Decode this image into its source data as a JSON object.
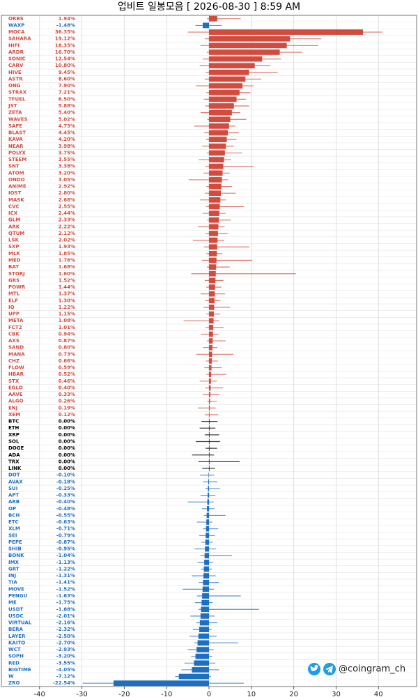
{
  "chart_data": {
    "type": "candle_bar",
    "title": "업비트 일봉모음 [ 2026-08-30 ]  8:59 AM",
    "watermark": "@coingram_ch",
    "color_up": "#d24b3f",
    "color_flat": "#000000",
    "color_down": "#1f6fbf",
    "xlim": [
      -49,
      49
    ],
    "xticks": [
      -40,
      -30,
      -20,
      -10,
      0,
      10,
      20,
      30,
      40
    ],
    "grid": true,
    "categories": [
      "ORBS",
      "WAXP",
      "MOCA",
      "SAHARA",
      "HIFI",
      "ARDR",
      "SONIC",
      "CARV",
      "HIVE",
      "ASTR",
      "ONG",
      "STRAX",
      "TFUEL",
      "JST",
      "ZETA",
      "WAVES",
      "SAFE",
      "BLAST",
      "KAVA",
      "NEAR",
      "POLYX",
      "STEEM",
      "SNT",
      "ATOM",
      "ONDO",
      "ANIME",
      "IOST",
      "MASK",
      "CVC",
      "ICX",
      "GLM",
      "ARK",
      "QTUM",
      "LSK",
      "SXP",
      "MLK",
      "MED",
      "BAT",
      "STORJ",
      "GRS",
      "POWR",
      "MTL",
      "ELF",
      "IQ",
      "UPP",
      "META",
      "FCT2",
      "CBK",
      "AXS",
      "SAND",
      "MANA",
      "CHZ",
      "FLOW",
      "HBAR",
      "STX",
      "EGLD",
      "AAVE",
      "ALGO",
      "ENJ",
      "XEM",
      "BTC",
      "ETH",
      "XRP",
      "SOL",
      "DOGE",
      "ADA",
      "TRX",
      "LINK",
      "DOT",
      "AVAX",
      "SUI",
      "APT",
      "ARB",
      "OP",
      "BCH",
      "ETC",
      "XLM",
      "SEI",
      "PEPE",
      "SHIB",
      "BONK",
      "IMX",
      "GRT",
      "INJ",
      "TIA",
      "MOVE",
      "PENGU",
      "ME",
      "USDT",
      "USDC",
      "VIRTUAL",
      "BERA",
      "LAYER",
      "KAITO",
      "WCT",
      "SOPH",
      "RED",
      "BIGTIME",
      "W",
      "ZRO"
    ],
    "values": [
      1.94,
      -1.48,
      36.35,
      19.12,
      18.35,
      16.7,
      12.54,
      10.8,
      9.45,
      8.6,
      7.9,
      7.21,
      6.5,
      5.88,
      5.4,
      5.02,
      4.73,
      4.45,
      4.2,
      3.98,
      3.75,
      3.55,
      3.38,
      3.2,
      3.05,
      2.92,
      2.8,
      2.68,
      2.55,
      2.44,
      2.33,
      2.22,
      2.12,
      2.02,
      1.93,
      1.85,
      1.76,
      1.68,
      1.6,
      1.52,
      1.44,
      1.37,
      1.3,
      1.22,
      1.15,
      1.08,
      1.01,
      0.94,
      0.87,
      0.8,
      0.73,
      0.66,
      0.59,
      0.52,
      0.46,
      0.4,
      0.33,
      0.26,
      0.19,
      0.12,
      0,
      0,
      0,
      0,
      0,
      0,
      0,
      0,
      -0.1,
      -0.18,
      -0.25,
      -0.33,
      -0.4,
      -0.48,
      -0.55,
      -0.63,
      -0.71,
      -0.79,
      -0.87,
      -0.95,
      -1.04,
      -1.13,
      -1.22,
      -1.31,
      -1.41,
      -1.52,
      -1.63,
      -1.75,
      -1.88,
      -2.01,
      -2.16,
      -2.32,
      -2.5,
      -2.7,
      -2.93,
      -3.2,
      -3.55,
      -4.05,
      -7.12,
      -22.54
    ],
    "value_labels": [
      "1.94%",
      "-1.48%",
      "36.35%",
      "19.12%",
      "18.35%",
      "16.70%",
      "12.54%",
      "10.80%",
      "9.45%",
      "8.60%",
      "7.90%",
      "7.21%",
      "6.50%",
      "5.88%",
      "5.40%",
      "5.02%",
      "4.73%",
      "4.45%",
      "4.20%",
      "3.98%",
      "3.75%",
      "3.55%",
      "3.38%",
      "3.20%",
      "3.05%",
      "2.92%",
      "2.80%",
      "2.68%",
      "2.55%",
      "2.44%",
      "2.33%",
      "2.22%",
      "2.12%",
      "2.02%",
      "1.93%",
      "1.85%",
      "1.76%",
      "1.68%",
      "1.60%",
      "1.52%",
      "1.44%",
      "1.37%",
      "1.30%",
      "1.22%",
      "1.15%",
      "1.08%",
      "1.01%",
      "0.94%",
      "0.87%",
      "0.80%",
      "0.73%",
      "0.66%",
      "0.59%",
      "0.52%",
      "0.46%",
      "0.40%",
      "0.33%",
      "0.26%",
      "0.19%",
      "0.12%",
      "0.00%",
      "0.00%",
      "0.00%",
      "0.00%",
      "0.00%",
      "0.00%",
      "0.00%",
      "0.00%",
      "-0.10%",
      "-0.18%",
      "-0.25%",
      "-0.33%",
      "-0.40%",
      "-0.48%",
      "-0.55%",
      "-0.63%",
      "-0.71%",
      "-0.79%",
      "-0.87%",
      "-0.95%",
      "-1.04%",
      "-1.13%",
      "-1.22%",
      "-1.31%",
      "-1.41%",
      "-1.52%",
      "-1.63%",
      "-1.75%",
      "-1.88%",
      "-2.01%",
      "-2.16%",
      "-2.32%",
      "-2.50%",
      "-2.70%",
      "-2.93%",
      "-3.20%",
      "-3.55%",
      "-4.05%",
      "-7.12%",
      "-22.54%"
    ],
    "lows": [
      -0.5,
      -3.2,
      -5,
      -1,
      -2,
      -0.5,
      -1.5,
      -2.2,
      -0.8,
      -1,
      -3.1,
      -0.6,
      -1.2,
      -0.9,
      -2,
      -0.4,
      -3.5,
      -1.1,
      -0.7,
      -1.6,
      -0.5,
      -2.4,
      -0.9,
      -1.3,
      -4.8,
      -0.6,
      -1,
      -2.1,
      -0.7,
      -1.5,
      -0.4,
      -2.6,
      -0.8,
      -3.8,
      -1.2,
      -0.6,
      -1.7,
      -0.5,
      -4.2,
      -1,
      -0.7,
      -2,
      -0.9,
      -1.3,
      -0.6,
      -6,
      -0.8,
      -1.9,
      -0.5,
      -1.4,
      -3,
      -0.7,
      -1.1,
      -0.6,
      -2.2,
      -0.9,
      -1.5,
      -0.4,
      -2.6,
      -1,
      -1.8,
      -2.2,
      -1,
      -3.1,
      -0.8,
      -4,
      -2.5,
      -1.6,
      -2.1,
      -1.4,
      -0.9,
      -2,
      -5,
      -1.7,
      -1.2,
      -2.9,
      -1.5,
      -2.3,
      -1.8,
      -3.4,
      -2,
      -2.7,
      -1.9,
      -4.1,
      -2.4,
      -6.2,
      -2.8,
      -3.3,
      -2.5,
      -4.4,
      -3,
      -3.8,
      -4.6,
      -3.5,
      -5,
      -4.2,
      -5.8,
      -6.5,
      -8,
      -29.8
    ],
    "highs": [
      7.5,
      3,
      41,
      26.5,
      25.8,
      22,
      17,
      14.5,
      16.2,
      12.3,
      10.5,
      9.8,
      8.7,
      9.5,
      7.4,
      8.8,
      6.2,
      7,
      6.5,
      5.9,
      7.8,
      5.2,
      10.5,
      4.9,
      4.5,
      5.4,
      6.3,
      4,
      8.2,
      3.9,
      5.1,
      3.7,
      4.4,
      3.6,
      9.5,
      3.1,
      10.2,
      4.9,
      20.5,
      3.4,
      2.9,
      3.8,
      2.7,
      5,
      2.6,
      2.4,
      3.5,
      2.2,
      3.9,
      2,
      5.8,
      2.1,
      3,
      4.1,
      1.9,
      3.3,
      2.5,
      1.8,
      1.6,
      2.2,
      2,
      1.5,
      2.4,
      2.6,
      1.9,
      1.2,
      7.2,
      1.4,
      1.2,
      2,
      2.6,
      1.5,
      1.1,
      1.3,
      3.9,
      0.8,
      2.2,
      1.4,
      0.9,
      1.7,
      5.4,
      1,
      0.7,
      1.6,
      2.3,
      1.2,
      7.5,
      0.9,
      11.8,
      1.3,
      2,
      0.6,
      1.8,
      6.9,
      1.1,
      0.8,
      1.5,
      2.4,
      0.5,
      8.2
    ]
  }
}
